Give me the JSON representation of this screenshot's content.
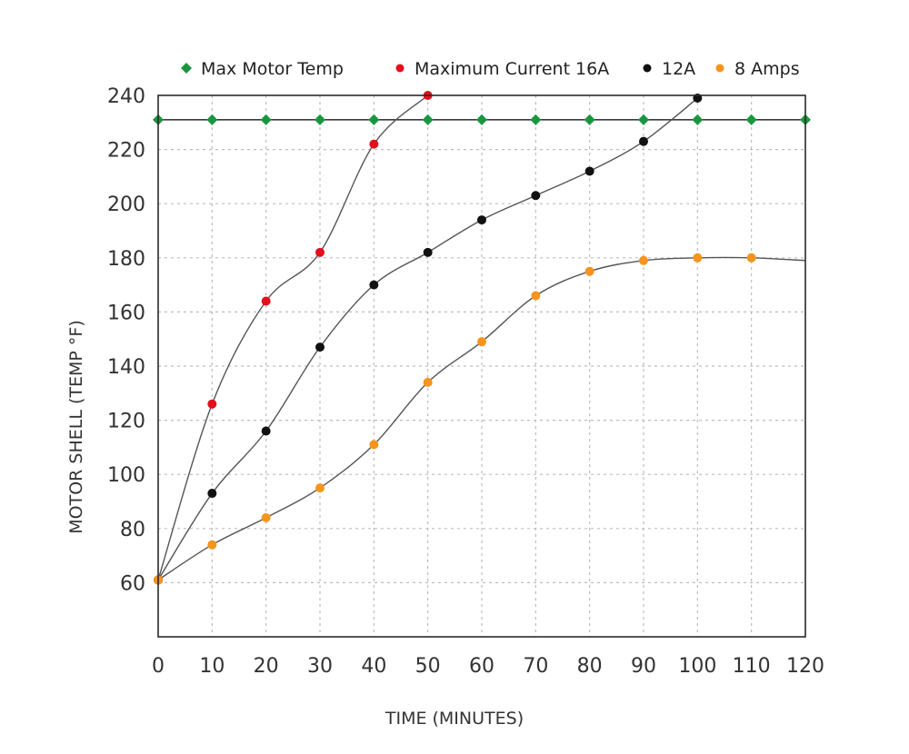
{
  "chart_data": {
    "type": "line",
    "title": "",
    "xlabel": "TIME (MINUTES)",
    "ylabel": "MOTOR SHELL (TEMP °F)",
    "xlim": [
      0,
      120
    ],
    "ylim": [
      40,
      240
    ],
    "xticks": [
      0,
      10,
      20,
      30,
      40,
      50,
      60,
      70,
      80,
      90,
      100,
      110,
      120
    ],
    "yticks": [
      60,
      80,
      100,
      120,
      140,
      160,
      180,
      200,
      220,
      240
    ],
    "grid": true,
    "legend_position": "top",
    "series": [
      {
        "name": "Max Motor Temp",
        "color": "#1a9641",
        "marker": "diamond",
        "x": [
          0,
          10,
          20,
          30,
          40,
          50,
          60,
          70,
          80,
          90,
          100,
          110,
          120
        ],
        "y": [
          231,
          231,
          231,
          231,
          231,
          231,
          231,
          231,
          231,
          231,
          231,
          231,
          231
        ]
      },
      {
        "name": "Maximum Current 16A",
        "color": "#e3101c",
        "marker": "circle",
        "x": [
          0,
          10,
          20,
          30,
          40,
          50
        ],
        "y": [
          61,
          126,
          164,
          182,
          222,
          240
        ]
      },
      {
        "name": "12A",
        "color": "#111111",
        "marker": "circle",
        "x": [
          0,
          10,
          20,
          30,
          40,
          50,
          60,
          70,
          80,
          90,
          100
        ],
        "y": [
          61,
          93,
          116,
          147,
          170,
          182,
          194,
          203,
          212,
          223,
          239
        ]
      },
      {
        "name": "8 Amps",
        "color": "#f7941d",
        "marker": "circle",
        "x": [
          0,
          10,
          20,
          30,
          40,
          50,
          60,
          70,
          80,
          90,
          100,
          110
        ],
        "y": [
          61,
          74,
          84,
          95,
          111,
          134,
          149,
          166,
          175,
          179,
          180,
          180
        ],
        "line_extends_to": [
          120,
          179
        ]
      }
    ]
  }
}
